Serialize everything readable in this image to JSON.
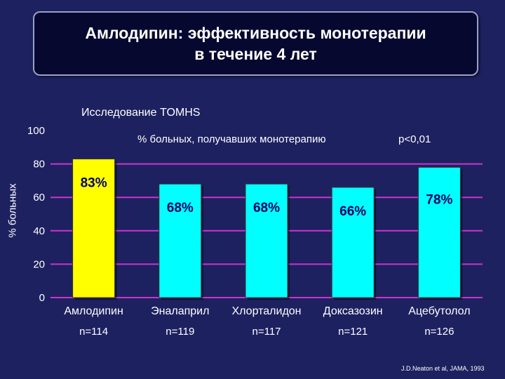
{
  "title_lines": [
    "Амлодипин: эффективность монотерапии",
    "в течение 4 лет"
  ],
  "study_label": "Исследование TOMHS",
  "p_value": "p<0,01",
  "source": "J.D.Neaton et al, JAMA, 1993",
  "colors": {
    "background": "#1d2160",
    "gridline": "#cc33cc",
    "bar_highlight": "#ffff00",
    "bar_default": "#00ffff",
    "value_label": "#000066"
  },
  "chart_data": {
    "type": "bar",
    "subtitle": "% больных, получавших монотерапию",
    "ylabel": "% больных",
    "xlabel": "",
    "ylim": [
      0,
      100
    ],
    "yticks": [
      0,
      20,
      40,
      60,
      80,
      100
    ],
    "grid": true,
    "categories": [
      "Амлодипин",
      "Эналаприл",
      "Хлорталидон",
      "Доксазозин",
      "Ацебутолол"
    ],
    "n_labels": [
      "n=114",
      "n=119",
      "n=117",
      "n=121",
      "n=126"
    ],
    "values": [
      83,
      68,
      68,
      66,
      78
    ],
    "value_labels": [
      "83%",
      "68%",
      "68%",
      "66%",
      "78%"
    ],
    "highlight_index": 0
  }
}
